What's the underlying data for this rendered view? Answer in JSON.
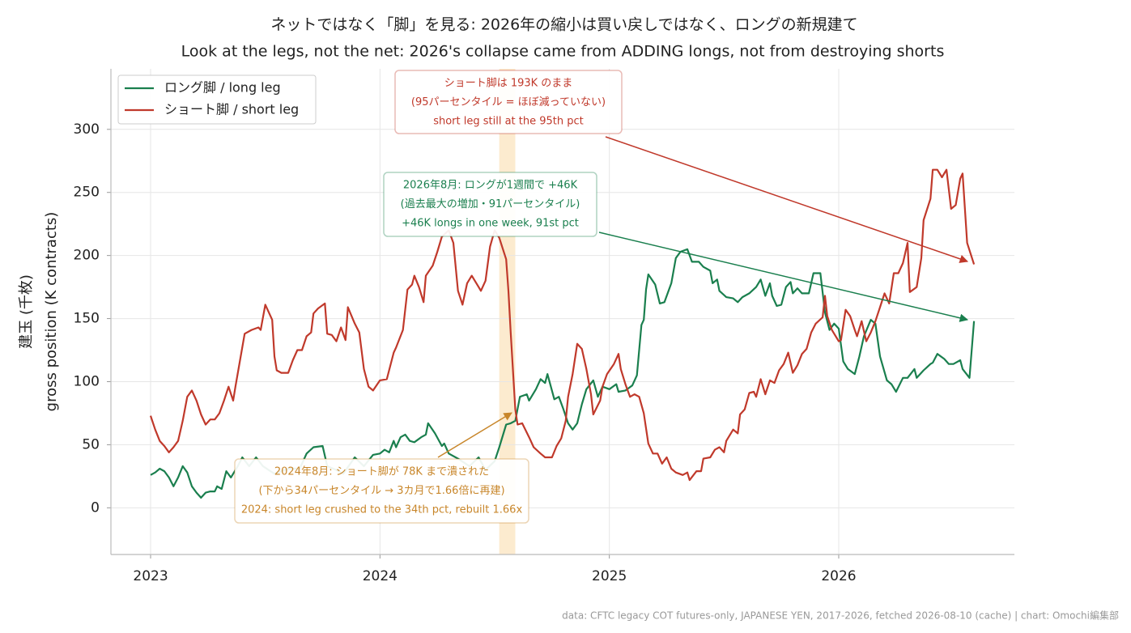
{
  "chart_data": {
    "type": "line",
    "title": "ネットではなく「脚」を見る: 2026年の縮小は買い戻しではなく、ロングの新規建て",
    "subtitle": "Look at the legs, not the net: 2026's collapse came from ADDING longs, not from destroying shorts",
    "ylabel": [
      "建玉 (千枚)",
      "gross position (K contracts)"
    ],
    "source": "data: CFTC legacy COT futures-only, JAPANESE YEN, 2017-2026, fetched 2026-08-10 (cache) | chart: Omochi編集部",
    "xlim": [
      2022.827,
      2026.766
    ],
    "xticks": [
      2023,
      2024,
      2025,
      2026
    ],
    "ylim": [
      -37,
      348
    ],
    "yticks": [
      0,
      50,
      100,
      150,
      200,
      250,
      300
    ],
    "grid": true,
    "legend": "upper left",
    "highlight": {
      "x": [
        2024.52,
        2024.59
      ],
      "color": "#f7c775"
    },
    "series": [
      {
        "name": "ロング脚 / long leg",
        "color": "#1a7f4e",
        "x": [
          2023.0,
          2023.02,
          2023.04,
          2023.06,
          2023.08,
          2023.1,
          2023.12,
          2023.14,
          2023.16,
          2023.18,
          2023.2,
          2023.22,
          2023.24,
          2023.26,
          2023.28,
          2023.29,
          2023.31,
          2023.33,
          2023.35,
          2023.38,
          2023.4,
          2023.43,
          2023.46,
          2023.49,
          2023.54,
          2023.6,
          2023.65,
          2023.68,
          2023.71,
          2023.75,
          2023.77,
          2023.81,
          2023.84,
          2023.89,
          2023.93,
          2023.97,
          2024.0,
          2024.02,
          2024.04,
          2024.06,
          2024.07,
          2024.09,
          2024.11,
          2024.13,
          2024.15,
          2024.18,
          2024.2,
          2024.21,
          2024.24,
          2024.27,
          2024.28,
          2024.3,
          2024.34,
          2024.39,
          2024.43,
          2024.46,
          2024.5,
          2024.52,
          2024.55,
          2024.57,
          2024.59,
          2024.61,
          2024.64,
          2024.65,
          2024.68,
          2024.7,
          2024.72,
          2024.73,
          2024.76,
          2024.78,
          2024.8,
          2024.82,
          2024.84,
          2024.86,
          2024.88,
          2024.9,
          2024.93,
          2024.95,
          2024.97,
          2025.0,
          2025.03,
          2025.04,
          2025.07,
          2025.1,
          2025.12,
          2025.14,
          2025.15,
          2025.16,
          2025.17,
          2025.2,
          2025.22,
          2025.24,
          2025.27,
          2025.29,
          2025.31,
          2025.34,
          2025.36,
          2025.39,
          2025.41,
          2025.44,
          2025.45,
          2025.47,
          2025.48,
          2025.51,
          2025.54,
          2025.56,
          2025.58,
          2025.61,
          2025.64,
          2025.66,
          2025.68,
          2025.7,
          2025.71,
          2025.73,
          2025.75,
          2025.77,
          2025.79,
          2025.8,
          2025.82,
          2025.84,
          2025.87,
          2025.89,
          2025.92,
          2025.94,
          2025.96,
          2025.98,
          2026.0,
          2026.02,
          2026.04,
          2026.07,
          2026.09,
          2026.11,
          2026.14,
          2026.16,
          2026.18,
          2026.21,
          2026.23,
          2026.25,
          2026.28,
          2026.3,
          2026.33,
          2026.34,
          2026.37,
          2026.4,
          2026.41,
          2026.43,
          2026.46,
          2026.48,
          2026.5,
          2026.53,
          2026.54,
          2026.57,
          2026.59
        ],
        "values": [
          26,
          28,
          31,
          29,
          24,
          17,
          24,
          33,
          28,
          17,
          12,
          8,
          12,
          13,
          13,
          17,
          15,
          29,
          24,
          33,
          40,
          33,
          40,
          33,
          27,
          31,
          31,
          43,
          48,
          49,
          33,
          30,
          27,
          40,
          33,
          42,
          43,
          46,
          44,
          53,
          48,
          56,
          58,
          53,
          52,
          56,
          58,
          67,
          59,
          49,
          51,
          43,
          39,
          33,
          40,
          30,
          37,
          48,
          66,
          67,
          69,
          88,
          90,
          85,
          94,
          102,
          99,
          106,
          86,
          88,
          78,
          67,
          62,
          67,
          82,
          94,
          101,
          88,
          96,
          94,
          98,
          92,
          93,
          97,
          105,
          145,
          149,
          173,
          185,
          177,
          162,
          163,
          178,
          198,
          203,
          205,
          195,
          195,
          191,
          188,
          178,
          181,
          172,
          167,
          166,
          163,
          167,
          170,
          175,
          181,
          168,
          178,
          168,
          160,
          161,
          175,
          179,
          170,
          174,
          170,
          170,
          186,
          186,
          155,
          141,
          146,
          142,
          116,
          110,
          106,
          120,
          136,
          149,
          146,
          120,
          101,
          98,
          92,
          103,
          103,
          110,
          103,
          109,
          114,
          115,
          122,
          118,
          114,
          114,
          117,
          110,
          103,
          148
        ]
      },
      {
        "name": "ショート脚 / short leg",
        "color": "#c0392b",
        "x": [
          2023.0,
          2023.02,
          2023.04,
          2023.06,
          2023.08,
          2023.1,
          2023.12,
          2023.14,
          2023.16,
          2023.18,
          2023.2,
          2023.22,
          2023.24,
          2023.26,
          2023.28,
          2023.3,
          2023.32,
          2023.34,
          2023.36,
          2023.37,
          2023.39,
          2023.41,
          2023.44,
          2023.47,
          2023.48,
          2023.5,
          2023.53,
          2023.54,
          2023.55,
          2023.57,
          2023.6,
          2023.62,
          2023.64,
          2023.66,
          2023.68,
          2023.7,
          2023.71,
          2023.73,
          2023.76,
          2023.77,
          2023.79,
          2023.81,
          2023.83,
          2023.85,
          2023.86,
          2023.89,
          2023.91,
          2023.93,
          2023.95,
          2023.97,
          2024.0,
          2024.03,
          2024.06,
          2024.07,
          2024.1,
          2024.12,
          2024.14,
          2024.15,
          2024.17,
          2024.19,
          2024.2,
          2024.23,
          2024.25,
          2024.27,
          2024.3,
          2024.32,
          2024.34,
          2024.36,
          2024.38,
          2024.4,
          2024.43,
          2024.44,
          2024.46,
          2024.48,
          2024.5,
          2024.52,
          2024.55,
          2024.56,
          2024.57,
          2024.59,
          2024.6,
          2024.62,
          2024.65,
          2024.67,
          2024.7,
          2024.72,
          2024.75,
          2024.77,
          2024.79,
          2024.81,
          2024.82,
          2024.84,
          2024.86,
          2024.88,
          2024.9,
          2024.92,
          2024.93,
          2024.96,
          2024.97,
          2024.99,
          2025.02,
          2025.04,
          2025.05,
          2025.07,
          2025.09,
          2025.11,
          2025.13,
          2025.15,
          2025.17,
          2025.19,
          2025.21,
          2025.23,
          2025.25,
          2025.27,
          2025.29,
          2025.32,
          2025.34,
          2025.35,
          2025.38,
          2025.4,
          2025.41,
          2025.44,
          2025.46,
          2025.48,
          2025.5,
          2025.51,
          2025.54,
          2025.56,
          2025.57,
          2025.59,
          2025.61,
          2025.63,
          2025.64,
          2025.66,
          2025.68,
          2025.7,
          2025.72,
          2025.74,
          2025.76,
          2025.78,
          2025.8,
          2025.82,
          2025.84,
          2025.86,
          2025.88,
          2025.9,
          2025.93,
          2025.94,
          2025.95,
          2025.97,
          2026.0,
          2026.01,
          2026.03,
          2026.05,
          2026.07,
          2026.08,
          2026.1,
          2026.12,
          2026.14,
          2026.16,
          2026.18,
          2026.2,
          2026.22,
          2026.24,
          2026.26,
          2026.28,
          2026.3,
          2026.31,
          2026.34,
          2026.36,
          2026.37,
          2026.4,
          2026.41,
          2026.43,
          2026.45,
          2026.47,
          2026.49,
          2026.51,
          2026.53,
          2026.54,
          2026.56,
          2026.59
        ],
        "values": [
          73,
          62,
          53,
          49,
          44,
          48,
          53,
          69,
          88,
          93,
          85,
          74,
          66,
          70,
          70,
          75,
          85,
          96,
          85,
          96,
          117,
          138,
          141,
          143,
          141,
          161,
          149,
          120,
          109,
          107,
          107,
          117,
          125,
          125,
          136,
          139,
          154,
          158,
          162,
          138,
          137,
          132,
          143,
          133,
          159,
          146,
          139,
          110,
          96,
          93,
          101,
          102,
          123,
          127,
          141,
          173,
          177,
          184,
          175,
          163,
          184,
          192,
          203,
          215,
          220,
          210,
          172,
          161,
          178,
          184,
          175,
          172,
          180,
          207,
          220,
          214,
          197,
          172,
          139,
          78,
          66,
          67,
          56,
          48,
          43,
          40,
          40,
          49,
          55,
          69,
          88,
          106,
          130,
          126,
          110,
          90,
          74,
          85,
          96,
          106,
          114,
          122,
          110,
          98,
          88,
          90,
          88,
          75,
          51,
          43,
          43,
          35,
          40,
          31,
          28,
          26,
          28,
          22,
          29,
          29,
          39,
          40,
          46,
          48,
          44,
          53,
          62,
          59,
          74,
          78,
          91,
          92,
          88,
          102,
          90,
          101,
          99,
          109,
          114,
          123,
          107,
          113,
          122,
          126,
          139,
          146,
          151,
          168,
          152,
          141,
          132,
          133,
          157,
          152,
          141,
          136,
          148,
          132,
          139,
          148,
          159,
          170,
          162,
          186,
          186,
          194,
          210,
          171,
          175,
          198,
          228,
          245,
          268,
          268,
          262,
          268,
          237,
          240,
          261,
          265,
          210,
          193
        ]
      }
    ],
    "annotations": [
      {
        "lines": [
          "ショート脚は 193K のまま",
          "(95パーセンタイル = ほぼ減っていない)",
          "short leg still at the 95th pct"
        ],
        "color": "#c0392b"
      },
      {
        "lines": [
          "2026年8月: ロングが1週間で +46K",
          "(過去最大の増加・91パーセンタイル)",
          "+46K longs in one week, 91st pct"
        ],
        "color": "#1a7f4e"
      },
      {
        "lines": [
          "2024年8月: ショート脚が 78K まで潰された",
          "(下から34パーセンタイル → 3カ月で1.66倍に再建)",
          "2024: short leg crushed to the 34th pct, rebuilt 1.66x"
        ],
        "color": "#c8862a"
      }
    ]
  }
}
